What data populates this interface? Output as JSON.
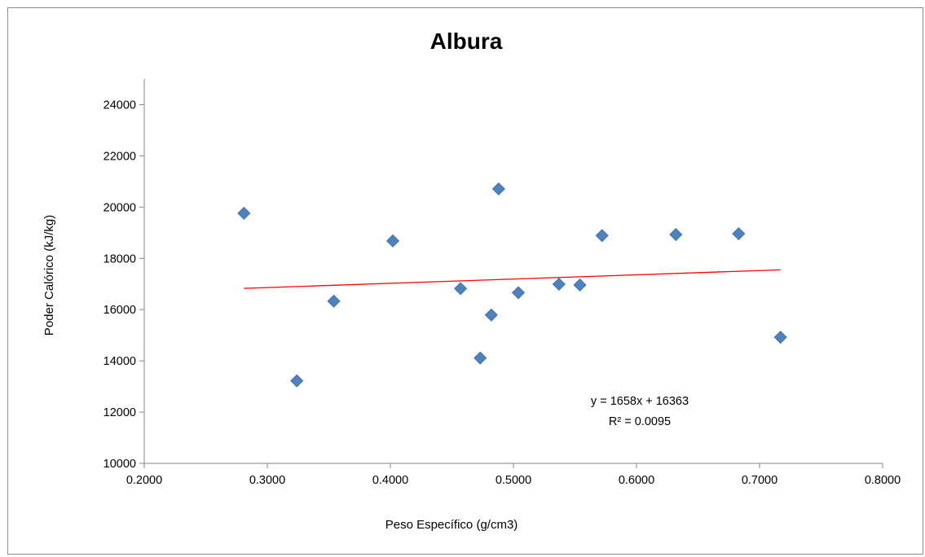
{
  "chart_data": {
    "type": "scatter",
    "title": "Albura",
    "xlabel": "Peso Específico (g/cm3)",
    "ylabel": "Poder Calórico (kJ/kg)",
    "xlim": [
      0.2,
      0.8
    ],
    "ylim": [
      10000,
      25000
    ],
    "x_ticks": [
      "0.2000",
      "0.3000",
      "0.4000",
      "0.5000",
      "0.6000",
      "0.7000",
      "0.8000"
    ],
    "y_ticks": [
      "10000",
      "12000",
      "14000",
      "16000",
      "18000",
      "20000",
      "22000",
      "24000"
    ],
    "x_tick_values": [
      0.2,
      0.3,
      0.4,
      0.5,
      0.6,
      0.7,
      0.8
    ],
    "y_tick_values": [
      10000,
      12000,
      14000,
      16000,
      18000,
      20000,
      22000,
      24000
    ],
    "grid": false,
    "legend": "none",
    "series": [
      {
        "marker_color": "#4f81bd",
        "marker": "diamond",
        "points": [
          {
            "x": 0.281,
            "y": 19760
          },
          {
            "x": 0.324,
            "y": 13220
          },
          {
            "x": 0.354,
            "y": 16330
          },
          {
            "x": 0.402,
            "y": 18680
          },
          {
            "x": 0.457,
            "y": 16820
          },
          {
            "x": 0.473,
            "y": 14110
          },
          {
            "x": 0.482,
            "y": 15790
          },
          {
            "x": 0.488,
            "y": 20710
          },
          {
            "x": 0.504,
            "y": 16660
          },
          {
            "x": 0.537,
            "y": 16990
          },
          {
            "x": 0.554,
            "y": 16960
          },
          {
            "x": 0.572,
            "y": 18890
          },
          {
            "x": 0.632,
            "y": 18930
          },
          {
            "x": 0.683,
            "y": 18960
          },
          {
            "x": 0.717,
            "y": 14920
          }
        ]
      }
    ],
    "trendline": {
      "color": "#ff0000",
      "slope": 1658,
      "intercept": 16363,
      "x_start": 0.281,
      "x_end": 0.717,
      "equation": "y = 1658x + 16363",
      "r_squared": "R² = 0.0095"
    }
  }
}
